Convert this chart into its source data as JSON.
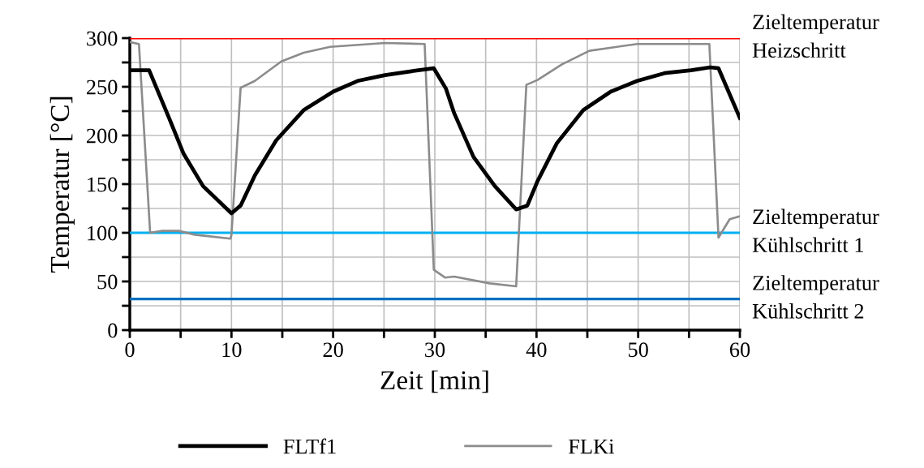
{
  "chart_data": {
    "type": "line",
    "xlabel": "Zeit [min]",
    "ylabel": "Temperatur [°C]",
    "xlim": [
      0,
      60
    ],
    "xticks": [
      0,
      {
        "value": 5,
        "label": null
      },
      10,
      {
        "value": 15,
        "label": null
      },
      20,
      {
        "value": 25,
        "label": null
      },
      30,
      {
        "value": 35,
        "label": null
      },
      40,
      {
        "value": 45,
        "label": null
      },
      50,
      {
        "value": 55,
        "label": null
      },
      60
    ],
    "ylim": [
      0,
      300
    ],
    "yticks": [
      0,
      {
        "value": 25,
        "label": null
      },
      50,
      {
        "value": 75,
        "label": null
      },
      100,
      {
        "value": 125,
        "label": null
      },
      150,
      {
        "value": 175,
        "label": null
      },
      200,
      {
        "value": 225,
        "label": null
      },
      250,
      {
        "value": 275,
        "label": null
      },
      300
    ],
    "grid": true,
    "legend": "bottom",
    "marker": "none",
    "line_style": "solid",
    "series": [
      {
        "name": "FLTf1",
        "color": "#000000",
        "x": [
          0,
          1.9,
          3.9,
          5.3,
          7.2,
          10,
          10.9,
          12.3,
          14.4,
          17.1,
          20,
          22.4,
          25.1,
          27.7,
          29.9,
          31.1,
          31.9,
          33.8,
          35.9,
          38,
          39.1,
          40.1,
          42,
          44.6,
          47.3,
          49.9,
          52.6,
          55.2,
          57.1,
          57.9,
          60
        ],
        "values": [
          267,
          267,
          217,
          181,
          148,
          120,
          128,
          159,
          195,
          226,
          245,
          256,
          262,
          266,
          269,
          248,
          223,
          178,
          148,
          124,
          128,
          153,
          192,
          226,
          245,
          256,
          264,
          267,
          270,
          269,
          218
        ]
      },
      {
        "name": "FLKi",
        "color": "#8c8c8c",
        "x": [
          0,
          0.9,
          2,
          3.2,
          4.8,
          6.4,
          9.9,
          10,
          10.9,
          12.3,
          14.9,
          17.1,
          19.7,
          25.1,
          29,
          29.9,
          31,
          31.9,
          35.4,
          38,
          39,
          40.1,
          42.5,
          45.2,
          49.9,
          57,
          57.9,
          59,
          60
        ],
        "values": [
          296,
          294,
          100,
          102,
          102,
          98,
          94,
          98,
          249,
          256,
          276,
          285,
          291,
          295,
          294,
          62,
          54,
          55,
          48,
          45,
          252,
          257,
          273,
          287,
          294,
          294,
          95,
          114,
          117
        ]
      }
    ],
    "ref_lines": [
      {
        "axis": "y",
        "value": 300,
        "label": "Zieltemperatur\nHeizschritt",
        "color": "#ff0000"
      },
      {
        "axis": "y",
        "value": 100,
        "label": "Zieltemperatur\nKühlschritt 1",
        "color": "#00b0f0"
      },
      {
        "axis": "y",
        "value": 32,
        "label": "Zieltemperatur\nKühlschritt 2",
        "color": "#0070c0"
      }
    ]
  }
}
